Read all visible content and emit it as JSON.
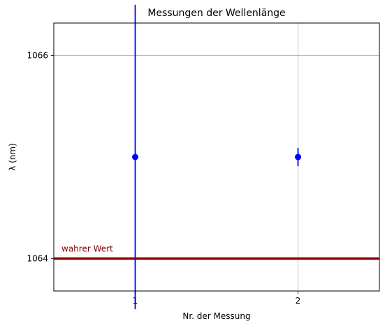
{
  "chart_data": {
    "type": "scatter",
    "title": "Messungen der Wellenlänge",
    "xlabel": "Nr. der Messung",
    "ylabel": "λ (nm)",
    "xlim": [
      0.5,
      2.5
    ],
    "ylim": [
      1063.68,
      1066.32
    ],
    "xticks": [
      1,
      2
    ],
    "yticks": [
      1064,
      1066
    ],
    "grid": true,
    "points": [
      {
        "x": 1,
        "y": 1065.0,
        "yerr": 1.5
      },
      {
        "x": 2,
        "y": 1065.0,
        "yerr": 0.09
      }
    ],
    "series_color": "#0000ff",
    "reference_line": {
      "y": 1064,
      "label": "wahrer Wert",
      "color": "#8b0000"
    }
  }
}
